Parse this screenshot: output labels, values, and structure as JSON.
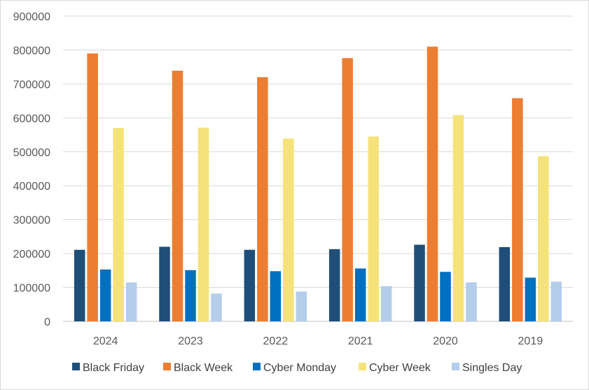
{
  "chart_data": {
    "type": "bar",
    "categories": [
      "2024",
      "2023",
      "2022",
      "2021",
      "2020",
      "2019"
    ],
    "series": [
      {
        "name": "Black Friday",
        "color": "#1f4e79",
        "values": [
          211000,
          220000,
          211000,
          213000,
          226000,
          219000
        ]
      },
      {
        "name": "Black Week",
        "color": "#ed7d31",
        "values": [
          790000,
          739000,
          720000,
          776000,
          810000,
          658000
        ]
      },
      {
        "name": "Cyber Monday",
        "color": "#0070c0",
        "values": [
          153000,
          151000,
          148000,
          156000,
          146000,
          129000
        ]
      },
      {
        "name": "Cyber Week",
        "color": "#f6e27a",
        "values": [
          570000,
          571000,
          539000,
          545000,
          608000,
          487000
        ]
      },
      {
        "name": "Singles Day",
        "color": "#b4cdea",
        "values": [
          115000,
          82000,
          88000,
          104000,
          115000,
          117000
        ]
      }
    ],
    "y_ticks": [
      "0",
      "100000",
      "200000",
      "300000",
      "400000",
      "500000",
      "600000",
      "700000",
      "800000",
      "900000"
    ],
    "ylim": [
      0,
      900000
    ],
    "grid": true,
    "legend_position": "bottom",
    "title": "",
    "xlabel": "",
    "ylabel": ""
  }
}
